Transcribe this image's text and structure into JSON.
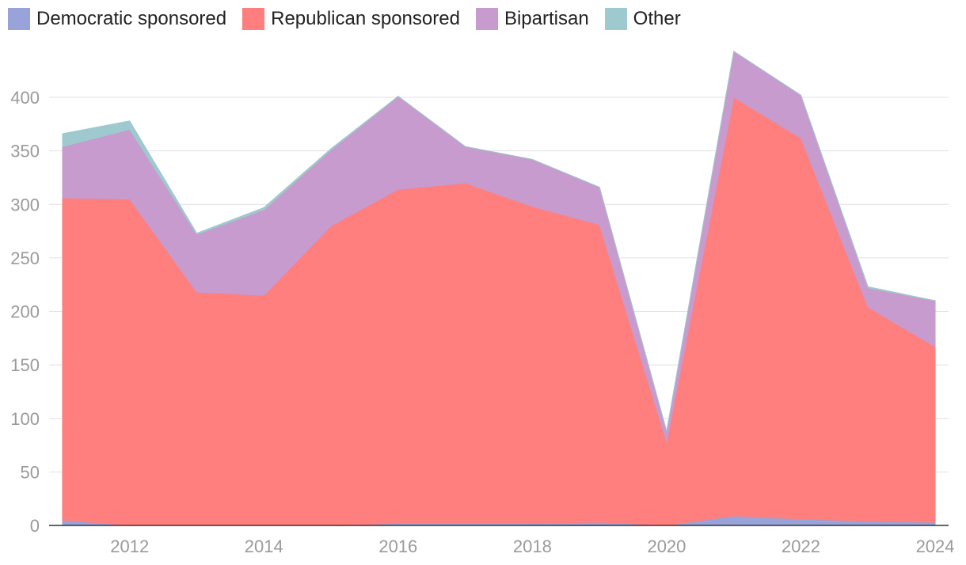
{
  "chart_data": {
    "type": "area",
    "stacked": true,
    "title": "",
    "xlabel": "",
    "ylabel": "",
    "x": [
      2011,
      2012,
      2013,
      2014,
      2015,
      2016,
      2017,
      2018,
      2019,
      2020,
      2021,
      2022,
      2023,
      2024
    ],
    "x_ticks": [
      "2012",
      "2014",
      "2016",
      "2018",
      "2020",
      "2022",
      "2024"
    ],
    "y_ticks": [
      "0",
      "50",
      "100",
      "150",
      "200",
      "250",
      "300",
      "350",
      "400"
    ],
    "ylim": [
      0,
      450
    ],
    "xlim": [
      2010.8,
      2024.2
    ],
    "grid": true,
    "legend_position": "top-left",
    "series": [
      {
        "name": "Democratic sponsored",
        "color": "#97A3D9",
        "values": [
          5,
          0,
          0,
          0,
          0,
          2,
          2,
          2,
          3,
          0,
          9,
          6,
          4,
          3
        ]
      },
      {
        "name": "Republican sponsored",
        "color": "#FF7E7E",
        "values": [
          301,
          305,
          218,
          215,
          280,
          312,
          318,
          296,
          278,
          78,
          391,
          356,
          200,
          164
        ]
      },
      {
        "name": "Bipartisan",
        "color": "#C79BCD",
        "values": [
          48,
          65,
          54,
          80,
          71,
          87,
          34,
          44,
          35,
          10,
          43,
          40,
          18,
          43
        ]
      },
      {
        "name": "Other",
        "color": "#9EC9CE",
        "values": [
          12,
          8,
          1,
          2,
          1,
          0,
          0,
          0,
          0,
          0,
          0,
          0,
          1,
          0
        ]
      }
    ]
  }
}
